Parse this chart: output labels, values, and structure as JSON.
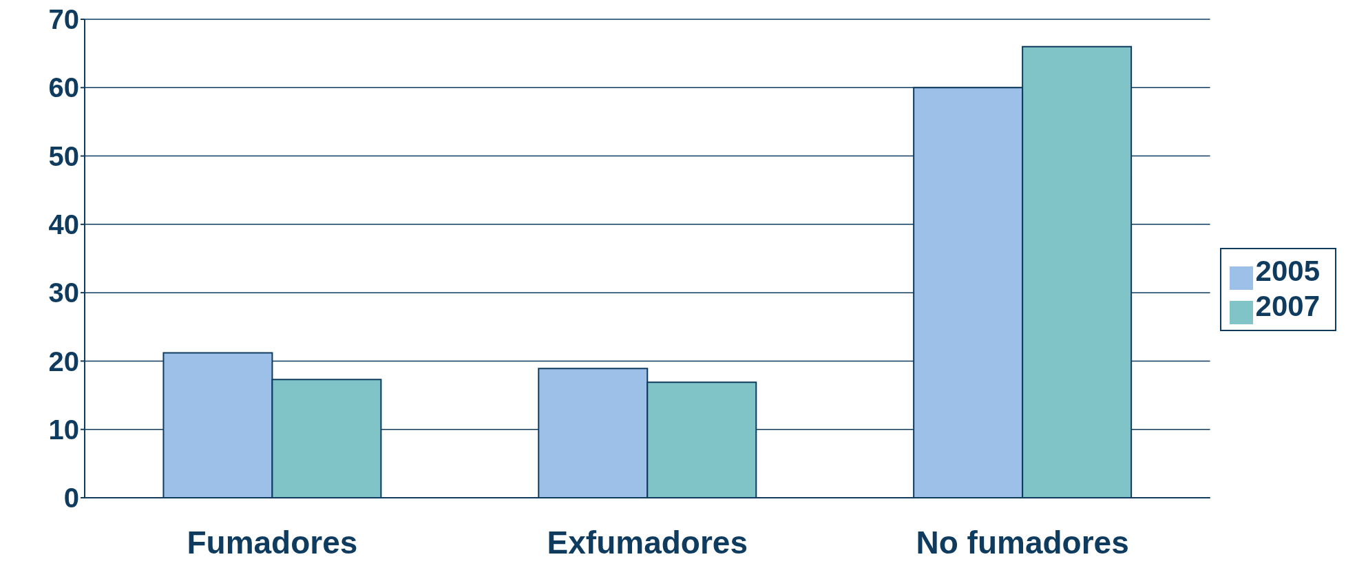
{
  "chart_data": {
    "type": "bar",
    "categories": [
      "Fumadores",
      "Exfumadores",
      "No fumadores"
    ],
    "series": [
      {
        "name": "2005",
        "color": "#9dc0e8",
        "values": [
          21.2,
          18.9,
          60.0
        ]
      },
      {
        "name": "2007",
        "color": "#80c4c8",
        "values": [
          17.3,
          16.9,
          66.0
        ]
      }
    ],
    "ylim": [
      0,
      70
    ],
    "yticks": [
      0,
      10,
      20,
      30,
      40,
      50,
      60,
      70
    ],
    "grid": "y",
    "legend": "right"
  }
}
